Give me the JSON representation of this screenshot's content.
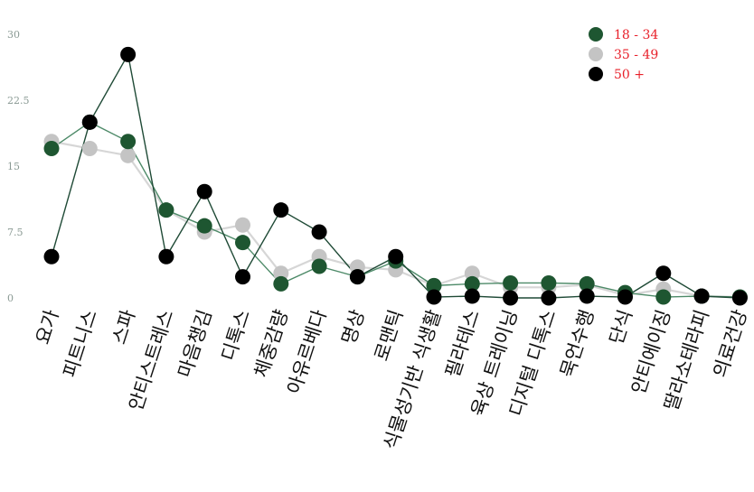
{
  "chart_data": {
    "type": "line",
    "categories": [
      "요가",
      "피트니스",
      "스파",
      "안티스트레스",
      "마음챙김",
      "디톡스",
      "체중감량",
      "아유르베다",
      "명상",
      "로맨틱",
      "식물성기반 식생활",
      "필라테스",
      "육상 트레이닝",
      "디지털 디톡스",
      "묵언수행",
      "단식",
      "안티에이징",
      "딸라소테라피",
      "의료건강"
    ],
    "ylim": [
      0,
      30
    ],
    "yticks": [
      "0",
      "7.5",
      "15",
      "22.5",
      "30"
    ],
    "grid": false,
    "legend_position": "top-right",
    "series": [
      {
        "name": "18 - 34",
        "color": "#1e5631",
        "line_color": "#4d8a68",
        "values": [
          17,
          20,
          17.8,
          10,
          8.2,
          6.3,
          1.6,
          3.6,
          2.4,
          4.2,
          1.4,
          1.6,
          1.7,
          1.7,
          1.6,
          0.6,
          0.1,
          0.2,
          0.1
        ]
      },
      {
        "name": "35 - 49",
        "color": "#c4c4c4",
        "line_color": "#d6d6d6",
        "values": [
          17.8,
          17,
          16.2,
          10,
          7.5,
          8.3,
          2.8,
          4.7,
          3.5,
          3.2,
          1.4,
          2.8,
          1.2,
          1.2,
          1.5,
          0.3,
          1.0,
          0.2,
          0.1
        ]
      },
      {
        "name": "50 +",
        "color": "#000000",
        "line_color": "#1f4a36",
        "values": [
          4.7,
          20,
          27.7,
          4.7,
          12.1,
          2.4,
          10,
          7.5,
          2.4,
          4.7,
          0.1,
          0.2,
          0.0,
          0.0,
          0.2,
          0.1,
          2.8,
          0.2,
          0.0
        ]
      }
    ]
  },
  "legend": {
    "text_color": "#e8202a",
    "items": [
      "18 - 34",
      "35 - 49",
      "50 +"
    ]
  }
}
